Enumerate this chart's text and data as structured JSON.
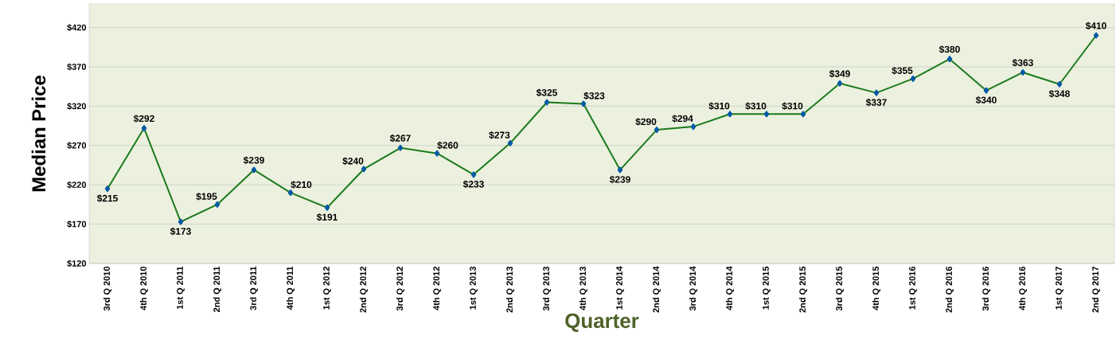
{
  "chart_data": {
    "type": "line",
    "xlabel": "Quarter",
    "ylabel": "Median Price",
    "categories": [
      "3rd Q 2010",
      "4th Q 2010",
      "1st Q 2011",
      "2nd Q 2011",
      "3rd Q 2011",
      "4th Q 2011",
      "1st Q 2012",
      "2nd Q 2012",
      "3rd Q 2012",
      "4th Q 2012",
      "1st Q 2013",
      "2nd Q 2013",
      "3rd Q 2013",
      "4th Q 2013",
      "1st Q 2014",
      "2nd Q 2014",
      "3rd Q 2014",
      "4th Q 2014",
      "1st Q 2015",
      "2nd Q 2015",
      "3rd Q 2015",
      "4th Q 2015",
      "1st Q 2016",
      "2nd Q 2016",
      "3rd Q 2016",
      "4th Q 2016",
      "1st Q 2017",
      "2nd Q 2017"
    ],
    "values": [
      215,
      292,
      173,
      195,
      239,
      210,
      191,
      240,
      267,
      260,
      233,
      273,
      325,
      323,
      239,
      290,
      294,
      310,
      310,
      310,
      349,
      337,
      355,
      380,
      340,
      363,
      348,
      410
    ],
    "value_labels": [
      "$215",
      "$292",
      "$173",
      "$195",
      "$239",
      "$210",
      "$191",
      "$240",
      "$267",
      "$260",
      "$233",
      "$273",
      "$325",
      "$323",
      "$239",
      "$290",
      "$294",
      "$310",
      "$310",
      "$310",
      "$349",
      "$337",
      "$355",
      "$380",
      "$340",
      "$363",
      "$348",
      "$410"
    ],
    "color": "#1b7a1b",
    "marker": "diamond",
    "line_style": "solid",
    "grid": "y",
    "ylim": [
      120,
      450
    ],
    "yticks": [
      {
        "value": 120,
        "label": "$120"
      },
      {
        "value": 170,
        "label": "$170"
      },
      {
        "value": 220,
        "label": "$220"
      },
      {
        "value": 270,
        "label": "$270"
      },
      {
        "value": 320,
        "label": "$320"
      },
      {
        "value": 370,
        "label": "$370"
      },
      {
        "value": 420,
        "label": "$420"
      }
    ]
  }
}
